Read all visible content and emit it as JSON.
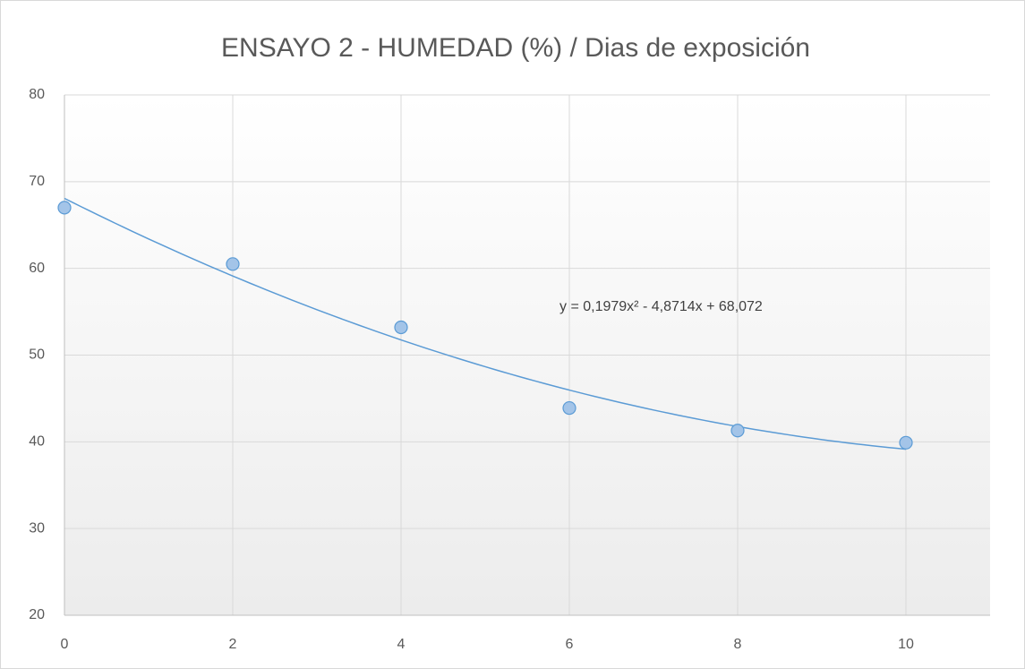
{
  "chart_data": {
    "type": "scatter",
    "title": "ENSAYO 2 -  HUMEDAD (%) / Dias de exposición",
    "series": [
      {
        "name": "Humedad",
        "color": "#5b9bd5",
        "fill": "#a3c4e8",
        "x": [
          0,
          2,
          4,
          6,
          8,
          10
        ],
        "values": [
          67,
          60.5,
          53.2,
          43.9,
          41.3,
          39.9
        ]
      }
    ],
    "trendline": {
      "type": "polynomial",
      "coefficients": [
        0.1979,
        -4.8714,
        68.072
      ],
      "color": "#5b9bd5",
      "label": "y = 0,1979x² - 4,8714x + 68,072"
    },
    "xlim": [
      0,
      11
    ],
    "xticks": [
      0,
      2,
      4,
      6,
      8,
      10
    ],
    "ylim": [
      20,
      80
    ],
    "yticks": [
      20,
      30,
      40,
      50,
      60,
      70,
      80
    ],
    "grid": true
  }
}
